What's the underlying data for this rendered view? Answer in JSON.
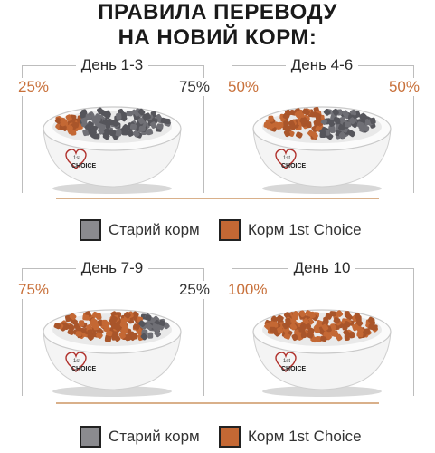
{
  "title": {
    "line1": "ПРАВИЛА ПЕРЕВОДУ",
    "line2": "НА НОВИЙ КОРМ:"
  },
  "panels": [
    {
      "day": "День 1-3",
      "left_pct": "25%",
      "right_pct": "75%",
      "new_share": 0.25
    },
    {
      "day": "День 4-6",
      "left_pct": "50%",
      "right_pct": "50%",
      "new_share": 0.5
    },
    {
      "day": "День 7-9",
      "left_pct": "75%",
      "right_pct": "25%",
      "new_share": 0.75
    },
    {
      "day": "День 10",
      "left_pct": "100%",
      "right_pct": "",
      "new_share": 1.0
    }
  ],
  "legend": {
    "old": "Старий корм",
    "new": "Корм 1st Choice"
  },
  "bowl_logo": {
    "line1": "1st",
    "line2": "CHOICE"
  },
  "colors": {
    "old_food": "#6f6f75",
    "new_food": "#c46834",
    "accent": "#c8703a",
    "separator": "#d9b08a"
  }
}
